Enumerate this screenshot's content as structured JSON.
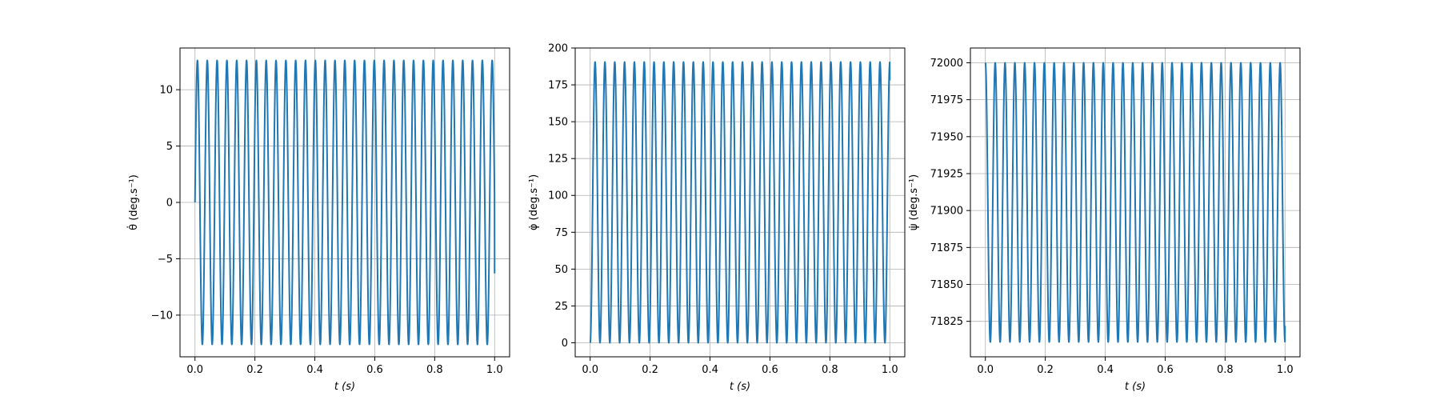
{
  "chart_data": [
    {
      "type": "line",
      "xlabel": "t (s)",
      "ylabel": "θ̇ (deg.s⁻¹)",
      "xlim": [
        -0.05,
        1.05
      ],
      "ylim": [
        -13.7,
        13.7
      ],
      "xticks": [
        0.0,
        0.2,
        0.4,
        0.6,
        0.8,
        1.0
      ],
      "xtick_labels": [
        "0.0",
        "0.2",
        "0.4",
        "0.6",
        "0.8",
        "1.0"
      ],
      "yticks": [
        -10,
        -5,
        0,
        5,
        10
      ],
      "ytick_labels": [
        "−10",
        "−5",
        "0",
        "5",
        "10"
      ],
      "grid": true,
      "series": [
        {
          "color": "#1f77b4",
          "shape": "sine",
          "amplitude": 12.6,
          "offset": 0,
          "cycles": 30.5,
          "phase": "sin",
          "x_range": [
            0,
            1
          ],
          "end_value": -6.3
        }
      ]
    },
    {
      "type": "line",
      "xlabel": "t (s)",
      "ylabel": "φ̇ (deg.s⁻¹)",
      "xlim": [
        -0.05,
        1.05
      ],
      "ylim": [
        -9.5,
        200
      ],
      "xticks": [
        0.0,
        0.2,
        0.4,
        0.6,
        0.8,
        1.0
      ],
      "xtick_labels": [
        "0.0",
        "0.2",
        "0.4",
        "0.6",
        "0.8",
        "1.0"
      ],
      "yticks": [
        0,
        25,
        50,
        75,
        100,
        125,
        150,
        175,
        200
      ],
      "ytick_labels": [
        "0",
        "25",
        "50",
        "75",
        "100",
        "125",
        "150",
        "175",
        "200"
      ],
      "grid": true,
      "series": [
        {
          "color": "#1f77b4",
          "shape": "one-minus-cos",
          "amplitude": 190.5,
          "offset": 0,
          "cycles": 30.5,
          "x_range": [
            0,
            1
          ],
          "end_value": 178
        }
      ]
    },
    {
      "type": "line",
      "xlabel": "t (s)",
      "ylabel": "ψ̇ (deg.s⁻¹)",
      "xlim": [
        -0.05,
        1.05
      ],
      "ylim": [
        71801,
        72010
      ],
      "xticks": [
        0.0,
        0.2,
        0.4,
        0.6,
        0.8,
        1.0
      ],
      "xtick_labels": [
        "0.0",
        "0.2",
        "0.4",
        "0.6",
        "0.8",
        "1.0"
      ],
      "yticks": [
        71825,
        71850,
        71875,
        71900,
        71925,
        71950,
        71975,
        72000
      ],
      "ytick_labels": [
        "71825",
        "71850",
        "71875",
        "71900",
        "71925",
        "71950",
        "71975",
        "72000"
      ],
      "grid": true,
      "series": [
        {
          "color": "#1f77b4",
          "shape": "cos-dip",
          "max": 72000,
          "min": 71811,
          "cycles": 30.5,
          "x_range": [
            0,
            1
          ],
          "end_value": 71822
        }
      ]
    }
  ]
}
